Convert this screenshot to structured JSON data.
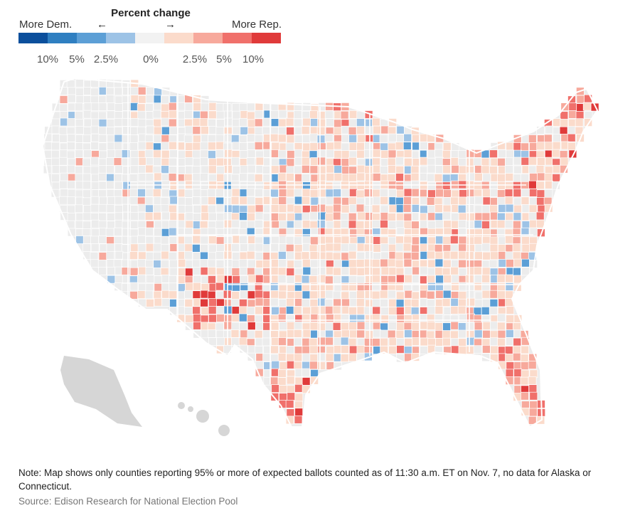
{
  "legend": {
    "title": "Percent change",
    "left_label": "More Dem.",
    "right_label": "More Rep.",
    "arrow_left": "←",
    "arrow_right": "→",
    "colors": [
      "#0b4f9c",
      "#2f7fc1",
      "#5c9fd6",
      "#9dc3e6",
      "#f2f2f2",
      "#fbdbcb",
      "#f7a99c",
      "#f0706b",
      "#e03a3a"
    ],
    "ticks": [
      "10%",
      "5%",
      "2.5%",
      "0%",
      "2.5%",
      "5%",
      "10%"
    ]
  },
  "map": {
    "land_color": "#ececec",
    "no_data_color": "#d6d6d6",
    "border_color": "#ffffff"
  },
  "note": "Note: Map shows only counties reporting 95% or more of expected ballots counted as of 11:30 a.m. ET on Nov. 7, no data for Alaska or Connecticut.",
  "source": "Source: Edison Research for National Election Pool"
}
